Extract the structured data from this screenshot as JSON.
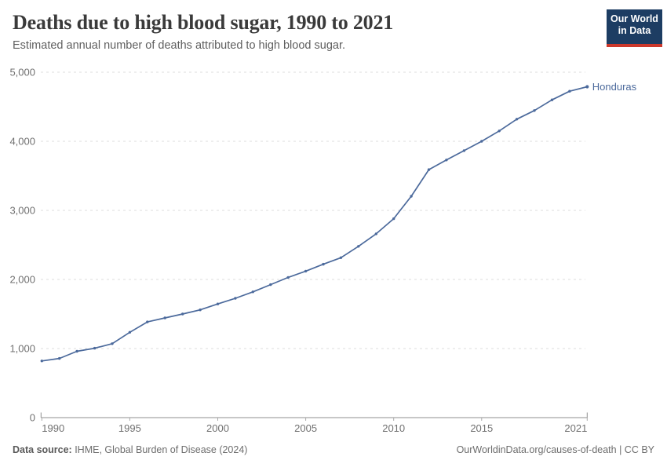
{
  "header": {
    "title": "Deaths due to high blood sugar, 1990 to 2021",
    "subtitle": "Estimated annual number of deaths attributed to high blood sugar.",
    "logo": {
      "line1": "Our World",
      "line2": "in Data"
    }
  },
  "chart_data": {
    "type": "line",
    "title": "Deaths due to high blood sugar, 1990 to 2021",
    "x": [
      1990,
      1991,
      1992,
      1993,
      1994,
      1995,
      1996,
      1997,
      1998,
      1999,
      2000,
      2001,
      2002,
      2003,
      2004,
      2005,
      2006,
      2007,
      2008,
      2009,
      2010,
      2011,
      2012,
      2013,
      2014,
      2015,
      2016,
      2017,
      2018,
      2019,
      2020,
      2021
    ],
    "series": [
      {
        "name": "Honduras",
        "color": "#4c6a9c",
        "values": [
          820,
          857,
          960,
          1005,
          1070,
          1235,
          1385,
          1443,
          1500,
          1560,
          1645,
          1727,
          1820,
          1925,
          2030,
          2120,
          2220,
          2315,
          2480,
          2660,
          2880,
          3205,
          3590,
          3730,
          3865,
          4000,
          4150,
          4320,
          4445,
          4600,
          4725,
          4790
        ]
      }
    ],
    "xlim": [
      1990,
      2021
    ],
    "ylim": [
      0,
      5000
    ],
    "x_ticks": [
      1990,
      1995,
      2000,
      2005,
      2010,
      2015,
      2021
    ],
    "y_ticks": [
      0,
      1000,
      2000,
      3000,
      4000,
      5000
    ],
    "grid": "horizontal-dashed",
    "legend": "end-of-line-label"
  },
  "footer": {
    "source_label": "Data source:",
    "source_value": " IHME, Global Burden of Disease (2024)",
    "link": "OurWorldinData.org/causes-of-death | CC BY"
  },
  "colors": {
    "line": "#4c6a9c",
    "gridline": "#dcdcdc",
    "axis": "#8f8f8f",
    "tick_label": "#707070",
    "logo_bg": "#1d3d63",
    "logo_accent": "#cc382b"
  }
}
